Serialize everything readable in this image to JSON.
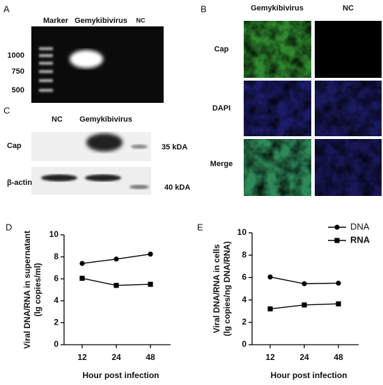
{
  "panels": {
    "A": {
      "letter": "A",
      "lanes": [
        "Marker",
        "Gemykibivirus",
        "NC"
      ],
      "ladder": [
        "1000",
        "750",
        "500"
      ]
    },
    "B": {
      "letter": "B",
      "columns": [
        "Gemykibivirus",
        "NC"
      ],
      "rows": [
        "Cap",
        "DAPI",
        "Merge"
      ]
    },
    "C": {
      "letter": "C",
      "lanes": [
        "NC",
        "Gemykibivirus"
      ],
      "rows": [
        "Cap",
        "β-actin"
      ],
      "sizes": [
        "35 kDA",
        "40 kDA"
      ]
    }
  },
  "chart_data": [
    {
      "type": "line",
      "panel_label": "D",
      "ylabel": [
        "Viral DNA/RNA in supernatant",
        "(lg copies/ml)"
      ],
      "xlabel": "Hour post infection",
      "categories": [
        "12",
        "24",
        "48"
      ],
      "ylim": [
        0,
        10
      ],
      "yticks": [
        0,
        2,
        4,
        6,
        8,
        10
      ],
      "series": [
        {
          "color": "#000000",
          "marker": "circle",
          "values": [
            7.4,
            7.8,
            8.25
          ]
        },
        {
          "color": "#000000",
          "marker": "square",
          "values": [
            6.05,
            5.4,
            5.5
          ]
        }
      ]
    },
    {
      "type": "line",
      "panel_label": "E",
      "ylabel": [
        "Viral DNA/RNA in cells",
        "(lg copies/ng DNA/RNA)"
      ],
      "xlabel": "Hour post infection",
      "categories": [
        "12",
        "24",
        "48"
      ],
      "ylim": [
        0,
        10
      ],
      "yticks": [
        0,
        2,
        4,
        6,
        8,
        10
      ],
      "legend": "upper right",
      "series": [
        {
          "name": "DNA",
          "color": "#000000",
          "marker": "circle",
          "values": [
            6.05,
            5.45,
            5.5
          ]
        },
        {
          "name": "RNA",
          "color": "#000000",
          "marker": "square",
          "values": [
            3.2,
            3.55,
            3.65
          ]
        }
      ]
    }
  ]
}
